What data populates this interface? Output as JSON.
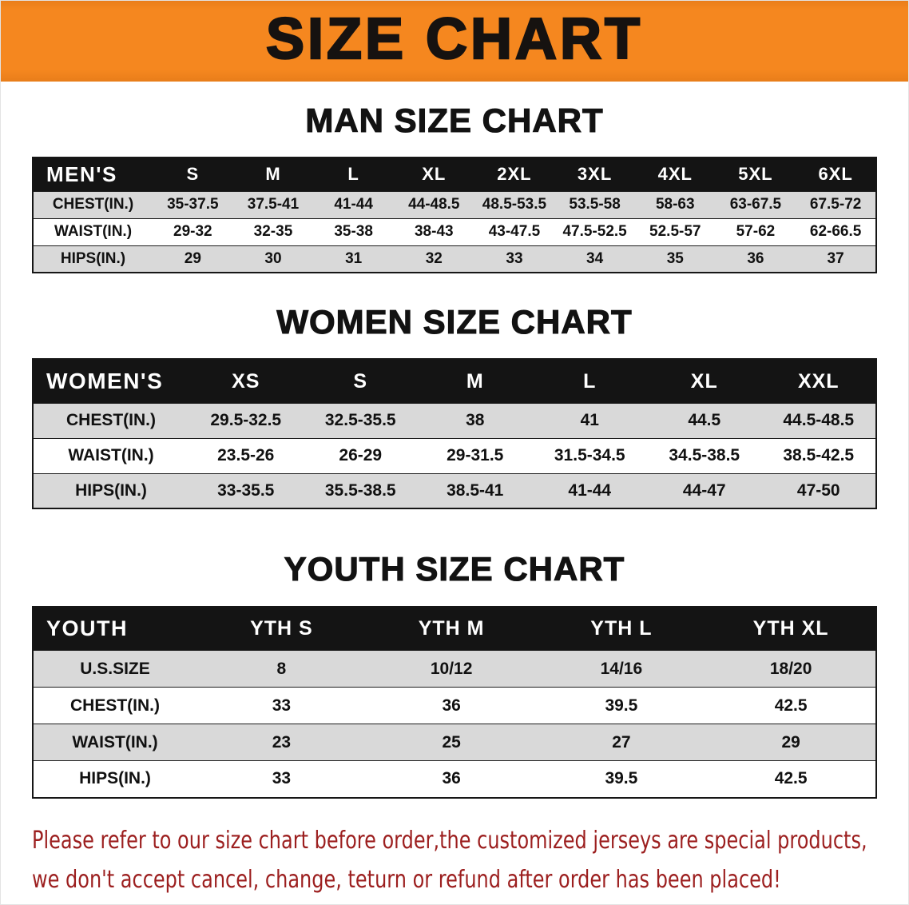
{
  "banner": {
    "title": "SIZE CHART"
  },
  "colors": {
    "banner_orange": "#f5871f",
    "banner_orange_dark": "#e87d1a",
    "table_header_black": "#141414",
    "stripe_gray": "#d9d9d9",
    "notice_red": "#9c1f1f"
  },
  "sections": [
    {
      "heading": "MAN SIZE CHART",
      "name": "mens-size-table",
      "header": [
        "MEN'S",
        "S",
        "M",
        "L",
        "XL",
        "2XL",
        "3XL",
        "4XL",
        "5XL",
        "6XL"
      ],
      "rows": [
        [
          "CHEST(IN.)",
          "35-37.5",
          "37.5-41",
          "41-44",
          "44-48.5",
          "48.5-53.5",
          "53.5-58",
          "58-63",
          "63-67.5",
          "67.5-72"
        ],
        [
          "WAIST(IN.)",
          "29-32",
          "32-35",
          "35-38",
          "38-43",
          "43-47.5",
          "47.5-52.5",
          "52.5-57",
          "57-62",
          "62-66.5"
        ],
        [
          "HIPS(IN.)",
          "29",
          "30",
          "31",
          "32",
          "33",
          "34",
          "35",
          "36",
          "37"
        ]
      ]
    },
    {
      "heading": "WOMEN SIZE CHART",
      "name": "womens-size-table",
      "header": [
        "WOMEN'S",
        "XS",
        "S",
        "M",
        "L",
        "XL",
        "XXL"
      ],
      "rows": [
        [
          "CHEST(IN.)",
          "29.5-32.5",
          "32.5-35.5",
          "38",
          "41",
          "44.5",
          "44.5-48.5"
        ],
        [
          "WAIST(IN.)",
          "23.5-26",
          "26-29",
          "29-31.5",
          "31.5-34.5",
          "34.5-38.5",
          "38.5-42.5"
        ],
        [
          "HIPS(IN.)",
          "33-35.5",
          "35.5-38.5",
          "38.5-41",
          "41-44",
          "44-47",
          "47-50"
        ]
      ]
    },
    {
      "heading": "YOUTH SIZE CHART",
      "name": "youth-size-table",
      "header": [
        "YOUTH",
        "YTH S",
        "YTH M",
        "YTH L",
        "YTH XL"
      ],
      "rows": [
        [
          "U.S.SIZE",
          "8",
          "10/12",
          "14/16",
          "18/20"
        ],
        [
          "CHEST(IN.)",
          "33",
          "36",
          "39.5",
          "42.5"
        ],
        [
          "WAIST(IN.)",
          "23",
          "25",
          "27",
          "29"
        ],
        [
          "HIPS(IN.)",
          "33",
          "36",
          "39.5",
          "42.5"
        ]
      ]
    }
  ],
  "footer": {
    "line1": "Please refer to our size chart before order,the customized jerseys are special products,",
    "line2": "we don't accept cancel, change, teturn or refund after order has been placed!"
  }
}
